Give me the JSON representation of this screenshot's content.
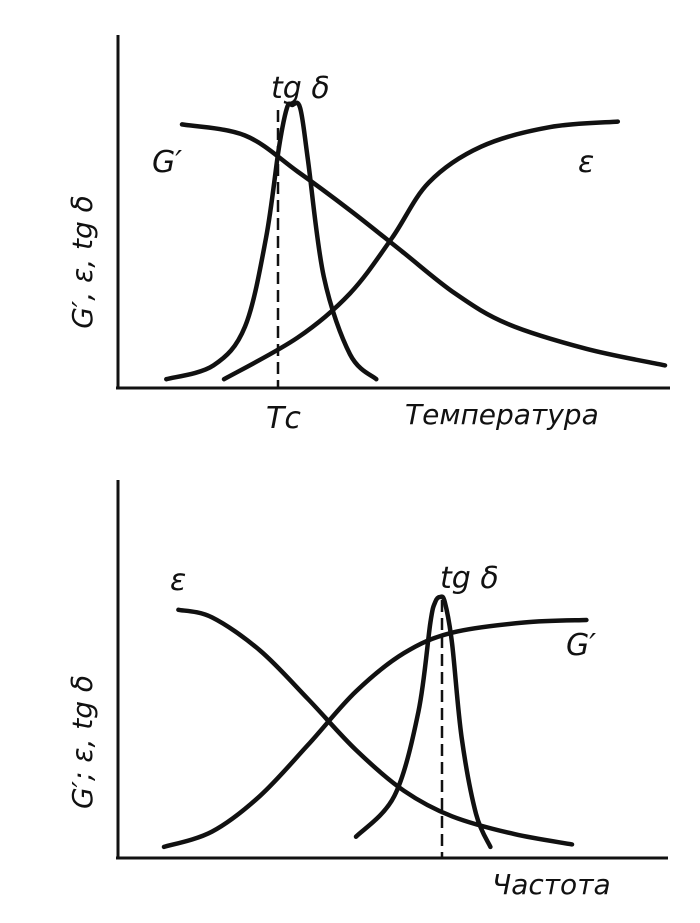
{
  "chart_data": [
    {
      "type": "line",
      "xlabel": "Температура",
      "ylabel": "G′, ε, tg δ",
      "xlim": [
        0,
        100
      ],
      "ylim": [
        0,
        100
      ],
      "x_tick_label": "Tс",
      "x_tick_at": 29,
      "series": [
        {
          "name": "G′",
          "x": [
            8,
            20,
            30,
            40,
            50,
            60,
            70,
            85,
            100
          ],
          "y": [
            93,
            89,
            76,
            62,
            47,
            32,
            21,
            12,
            6
          ]
        },
        {
          "name": "ε",
          "x": [
            16,
            30,
            40,
            48,
            55,
            65,
            78,
            91
          ],
          "y": [
            1,
            16,
            32,
            52,
            72,
            85,
            92,
            94
          ]
        },
        {
          "name": "tg δ",
          "x": [
            5,
            14,
            20,
            24,
            26.5,
            28,
            29,
            30.5,
            32,
            35,
            40,
            45
          ],
          "y": [
            1,
            6,
            20,
            52,
            85,
            99,
            100,
            99,
            80,
            38,
            10,
            1
          ]
        }
      ]
    },
    {
      "type": "line",
      "xlabel": "Частота",
      "ylabel": "G′; ε, tg δ",
      "xlim": [
        0,
        100
      ],
      "ylim": [
        0,
        100
      ],
      "series": [
        {
          "name": "ε",
          "x": [
            8,
            15,
            25,
            35,
            45,
            55,
            65,
            78,
            90
          ],
          "y": [
            95,
            92,
            79,
            60,
            40,
            24,
            14,
            7,
            3
          ]
        },
        {
          "name": "G′",
          "x": [
            5,
            15,
            25,
            35,
            45,
            55,
            65,
            80,
            93
          ],
          "y": [
            2,
            8,
            22,
            42,
            63,
            78,
            86,
            90,
            91
          ]
        },
        {
          "name": "tg δ",
          "x": [
            45,
            53,
            58,
            60.5,
            61.5,
            62.5,
            63.5,
            65,
            67,
            70,
            73
          ],
          "y": [
            6,
            22,
            55,
            90,
            98,
            100,
            98,
            82,
            45,
            15,
            2
          ]
        }
      ]
    }
  ]
}
